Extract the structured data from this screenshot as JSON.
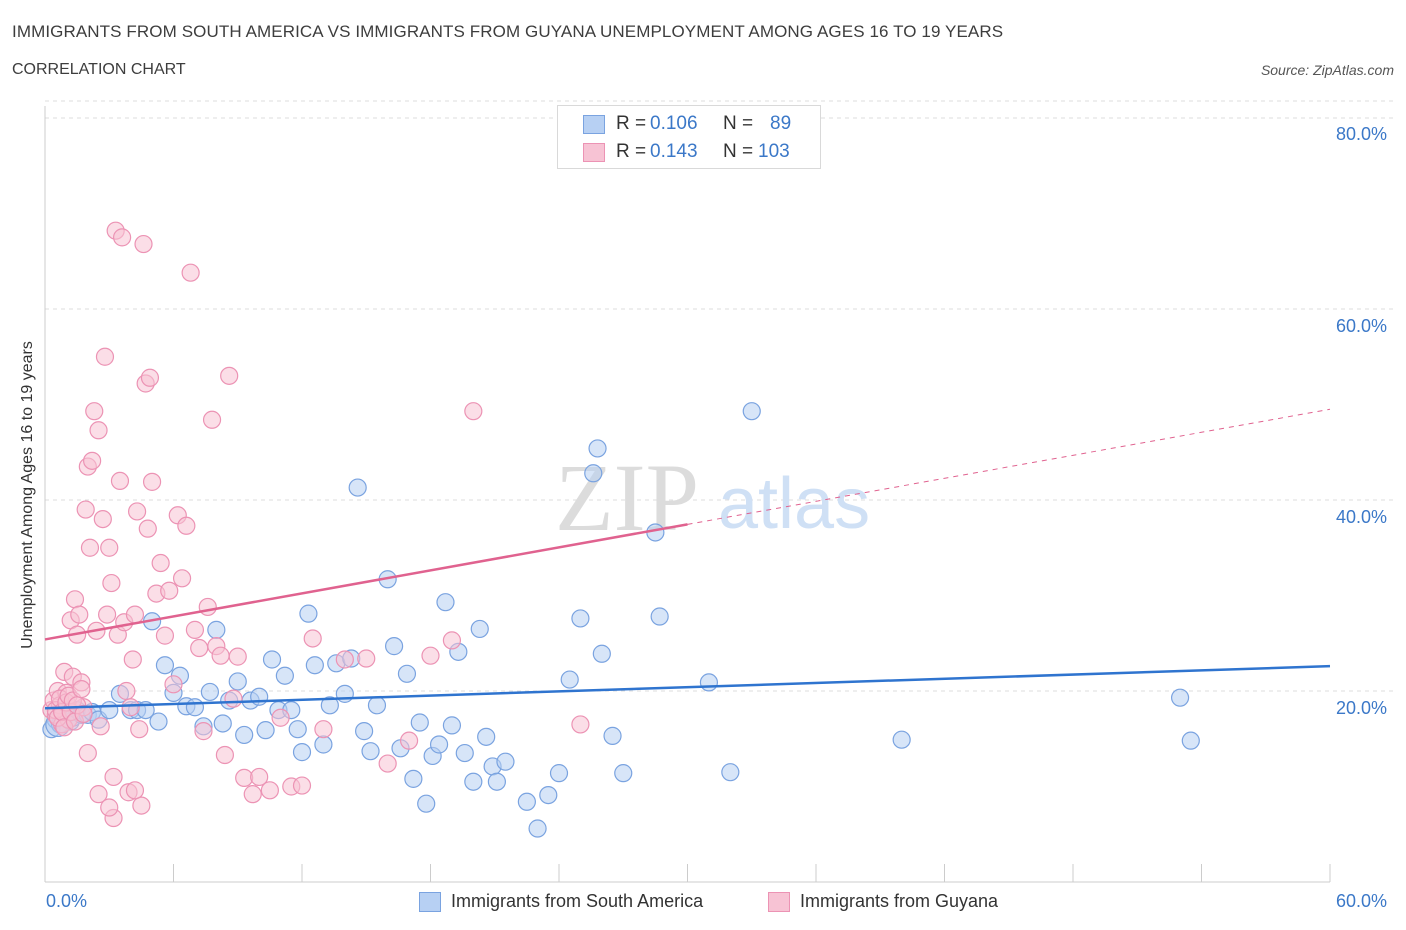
{
  "title": "IMMIGRANTS FROM SOUTH AMERICA VS IMMIGRANTS FROM GUYANA UNEMPLOYMENT AMONG AGES 16 TO 19 YEARS",
  "subtitle": "CORRELATION CHART",
  "source": "Source: ZipAtlas.com",
  "watermark": "ZIPatlas",
  "legend": {
    "rows": [
      {
        "r_label": "R = ",
        "r_value": "0.106",
        "n_label": "N = ",
        "n_value": "89"
      },
      {
        "r_label": "R = ",
        "r_value": "0.143",
        "n_label": "N = ",
        "n_value": "103"
      }
    ]
  },
  "bottom_legend": [
    "Immigrants from South America",
    "Immigrants from Guyana"
  ],
  "colors": {
    "blue_fill": "#b7d0f3",
    "blue_stroke": "#7aa3e0",
    "blue_line": "#2f74cf",
    "pink_fill": "#f7c3d4",
    "pink_stroke": "#ec93b4",
    "pink_line": "#e0628f",
    "grid": "#dcdcdc",
    "axis_text": "#3b78c8"
  },
  "chart_data": {
    "type": "scatter",
    "title": "IMMIGRANTS FROM SOUTH AMERICA VS IMMIGRANTS FROM GUYANA UNEMPLOYMENT AMONG AGES 16 TO 19 YEARS",
    "xlabel": "",
    "ylabel": "Unemployment Among Ages 16 to 19 years",
    "xlim": [
      0,
      60
    ],
    "ylim": [
      0,
      80
    ],
    "x_tick_labels": [
      "0.0%",
      "60.0%"
    ],
    "y_tick_labels": [
      "20.0%",
      "40.0%",
      "60.0%",
      "80.0%"
    ],
    "y_ticks": [
      20,
      40,
      60,
      80
    ],
    "grid": true,
    "legend_position": "top-center",
    "series": [
      {
        "name": "Immigrants from South America",
        "R": 0.106,
        "N": 89,
        "trend": {
          "x": [
            0,
            60
          ],
          "y": [
            18.2,
            22.6
          ],
          "dashed_from": null
        },
        "points": [
          [
            0.3,
            16
          ],
          [
            0.5,
            17
          ],
          [
            0.7,
            16.5
          ],
          [
            0.9,
            18
          ],
          [
            1.0,
            17.5
          ],
          [
            1.2,
            16.8
          ],
          [
            1.3,
            17.2
          ],
          [
            1.5,
            18
          ],
          [
            1.7,
            17.5
          ],
          [
            2.0,
            17.5
          ],
          [
            2.2,
            17.8
          ],
          [
            2.5,
            17
          ],
          [
            3,
            18
          ],
          [
            3.5,
            19.7
          ],
          [
            4,
            18
          ],
          [
            4.3,
            18
          ],
          [
            4.7,
            18
          ],
          [
            5,
            27.3
          ],
          [
            5.3,
            16.8
          ],
          [
            5.6,
            22.7
          ],
          [
            6,
            19.8
          ],
          [
            6.3,
            21.6
          ],
          [
            6.6,
            18.4
          ],
          [
            7,
            18.3
          ],
          [
            7.4,
            16.3
          ],
          [
            7.7,
            19.9
          ],
          [
            8,
            26.4
          ],
          [
            8.3,
            16.6
          ],
          [
            8.6,
            19
          ],
          [
            9,
            21
          ],
          [
            9.3,
            15.4
          ],
          [
            9.6,
            19
          ],
          [
            10,
            19.4
          ],
          [
            10.3,
            15.9
          ],
          [
            10.6,
            23.3
          ],
          [
            10.9,
            18
          ],
          [
            11.2,
            21.6
          ],
          [
            11.5,
            18
          ],
          [
            11.8,
            16
          ],
          [
            12,
            13.6
          ],
          [
            12.3,
            28.1
          ],
          [
            12.6,
            22.7
          ],
          [
            13,
            14.4
          ],
          [
            13.3,
            18.5
          ],
          [
            13.6,
            22.9
          ],
          [
            14,
            19.7
          ],
          [
            14.3,
            23.4
          ],
          [
            14.6,
            41.3
          ],
          [
            14.9,
            15.8
          ],
          [
            15.2,
            13.7
          ],
          [
            15.5,
            18.5
          ],
          [
            16,
            31.7
          ],
          [
            16.3,
            24.7
          ],
          [
            16.6,
            14
          ],
          [
            16.9,
            21.8
          ],
          [
            17.2,
            10.8
          ],
          [
            17.5,
            16.7
          ],
          [
            17.8,
            8.2
          ],
          [
            18.1,
            13.2
          ],
          [
            18.4,
            14.4
          ],
          [
            18.7,
            29.3
          ],
          [
            19,
            16.4
          ],
          [
            19.3,
            24.1
          ],
          [
            19.6,
            13.5
          ],
          [
            20,
            10.5
          ],
          [
            20.3,
            26.5
          ],
          [
            20.6,
            15.2
          ],
          [
            20.9,
            12.1
          ],
          [
            21.1,
            10.5
          ],
          [
            21.5,
            12.6
          ],
          [
            22.5,
            8.4
          ],
          [
            23,
            5.6
          ],
          [
            23.5,
            9.1
          ],
          [
            24,
            11.4
          ],
          [
            24.5,
            21.2
          ],
          [
            25,
            27.6
          ],
          [
            25.6,
            42.8
          ],
          [
            25.8,
            45.4
          ],
          [
            26,
            23.9
          ],
          [
            26.5,
            15.3
          ],
          [
            27,
            11.4
          ],
          [
            28.5,
            36.6
          ],
          [
            28.7,
            27.8
          ],
          [
            31,
            20.9
          ],
          [
            32,
            11.5
          ],
          [
            33,
            49.3
          ],
          [
            40,
            14.9
          ],
          [
            53,
            19.3
          ],
          [
            53.5,
            14.8
          ]
        ]
      },
      {
        "name": "Immigrants from Guyana",
        "R": 0.143,
        "N": 103,
        "trend": {
          "x": [
            0,
            60
          ],
          "y": [
            25.4,
            49.5
          ],
          "dashed_from": 30
        },
        "points": [
          [
            0.3,
            18
          ],
          [
            0.4,
            19
          ],
          [
            0.5,
            17.5
          ],
          [
            0.6,
            20
          ],
          [
            0.7,
            18.5
          ],
          [
            0.8,
            16.5
          ],
          [
            0.9,
            22
          ],
          [
            1.0,
            19.8
          ],
          [
            1.1,
            17
          ],
          [
            1.2,
            27.4
          ],
          [
            1.3,
            21.5
          ],
          [
            1.4,
            29.6
          ],
          [
            1.5,
            25.9
          ],
          [
            1.6,
            28
          ],
          [
            1.7,
            20.9
          ],
          [
            1.8,
            18.3
          ],
          [
            1.9,
            39
          ],
          [
            2.0,
            43.5
          ],
          [
            2.1,
            35
          ],
          [
            2.2,
            44.1
          ],
          [
            2.3,
            49.3
          ],
          [
            2.4,
            26.3
          ],
          [
            2.5,
            47.3
          ],
          [
            2.6,
            16.3
          ],
          [
            2.7,
            38
          ],
          [
            2.8,
            55
          ],
          [
            2.9,
            28
          ],
          [
            3.0,
            35
          ],
          [
            3.1,
            31.3
          ],
          [
            3.2,
            6.7
          ],
          [
            3.3,
            68.2
          ],
          [
            3.4,
            25.9
          ],
          [
            3.5,
            42
          ],
          [
            3.6,
            67.5
          ],
          [
            3.7,
            27.2
          ],
          [
            3.8,
            20
          ],
          [
            3.9,
            9.4
          ],
          [
            4.0,
            18.3
          ],
          [
            4.1,
            23.3
          ],
          [
            4.2,
            28
          ],
          [
            4.3,
            38.8
          ],
          [
            4.4,
            16
          ],
          [
            4.5,
            8
          ],
          [
            4.6,
            66.8
          ],
          [
            4.7,
            52.2
          ],
          [
            4.8,
            37
          ],
          [
            4.9,
            52.8
          ],
          [
            5.0,
            41.9
          ],
          [
            5.2,
            30.2
          ],
          [
            5.4,
            33.4
          ],
          [
            5.6,
            25.8
          ],
          [
            5.8,
            30.5
          ],
          [
            6.0,
            20.7
          ],
          [
            6.2,
            38.4
          ],
          [
            6.4,
            31.8
          ],
          [
            6.6,
            37.3
          ],
          [
            6.8,
            63.8
          ],
          [
            7.0,
            26.4
          ],
          [
            7.2,
            24.5
          ],
          [
            7.4,
            15.8
          ],
          [
            7.6,
            28.8
          ],
          [
            7.8,
            48.4
          ],
          [
            8.0,
            24.7
          ],
          [
            8.2,
            23.7
          ],
          [
            8.4,
            13.3
          ],
          [
            8.6,
            53
          ],
          [
            8.8,
            19.2
          ],
          [
            9.0,
            23.6
          ],
          [
            9.3,
            10.9
          ],
          [
            9.7,
            9.2
          ],
          [
            10,
            11
          ],
          [
            10.5,
            9.6
          ],
          [
            11,
            17.2
          ],
          [
            11.5,
            10
          ],
          [
            12,
            10.1
          ],
          [
            12.5,
            25.5
          ],
          [
            13,
            16
          ],
          [
            14,
            23.3
          ],
          [
            15,
            23.4
          ],
          [
            16,
            12.4
          ],
          [
            17,
            14.8
          ],
          [
            18,
            23.7
          ],
          [
            19,
            25.3
          ],
          [
            20,
            49.3
          ],
          [
            25,
            16.5
          ],
          [
            0.5,
            18
          ],
          [
            0.6,
            17.2
          ],
          [
            0.7,
            19.2
          ],
          [
            0.8,
            17.8
          ],
          [
            0.9,
            16.2
          ],
          [
            1.0,
            18.8
          ],
          [
            1.1,
            19.5
          ],
          [
            1.2,
            17.8
          ],
          [
            1.3,
            19
          ],
          [
            1.4,
            16.8
          ],
          [
            1.5,
            18.5
          ],
          [
            1.7,
            20.2
          ],
          [
            1.8,
            17.6
          ],
          [
            2.0,
            13.5
          ],
          [
            2.5,
            9.2
          ],
          [
            3,
            7.8
          ],
          [
            3.2,
            11
          ],
          [
            4.2,
            9.6
          ]
        ]
      }
    ]
  }
}
